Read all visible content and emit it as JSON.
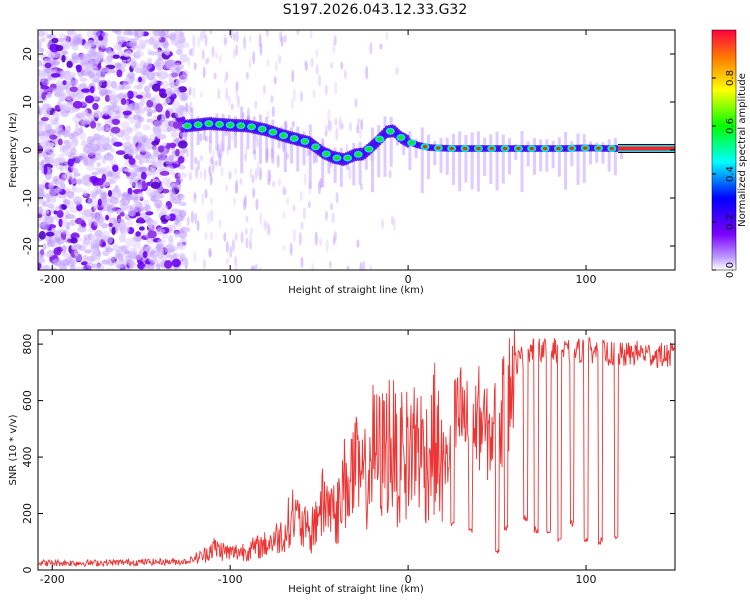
{
  "title": "S197.2026.043.12.33.G32",
  "colors": {
    "trace": "#ee3333",
    "axis": "#000000",
    "track": "#000000"
  },
  "chart_data": [
    {
      "type": "heatmap",
      "title": "S197.2026.043.12.33.G32",
      "xlabel": "Height of straight line (km)",
      "ylabel": "Frequency (Hz)",
      "xlim": [
        -208,
        150
      ],
      "ylim": [
        -25,
        25
      ],
      "xticks": [
        -200,
        -100,
        0,
        100
      ],
      "yticks": [
        -20,
        -10,
        0,
        10,
        20
      ],
      "colorbar": {
        "label": "Normalized spectral amplitude",
        "range": [
          0,
          1
        ],
        "ticks": [
          "0.0",
          "0.2",
          "0.4",
          "0.6",
          "0.8"
        ],
        "colors": [
          "#ffffff",
          "#a070ff",
          "#0000ff",
          "#00ffff",
          "#00ff00",
          "#ffff00",
          "#ff8000",
          "#ff0000"
        ]
      },
      "ridge_heights_km": [
        -125,
        -112,
        -100,
        -90,
        -80,
        -70,
        -62,
        -55,
        -48,
        -42,
        -36,
        -30,
        -25,
        -18,
        -12,
        -8,
        -4,
        0,
        4,
        8,
        12,
        18,
        25,
        32,
        40,
        48,
        56,
        64,
        72,
        80,
        88,
        96,
        104,
        112,
        120,
        130,
        140,
        150
      ],
      "ridge_freq_hz": [
        5.0,
        5.5,
        5.2,
        5.0,
        4.2,
        3.0,
        2.2,
        1.5,
        -0.5,
        -1.5,
        -2.0,
        -1.0,
        -0.8,
        1.5,
        3.8,
        4.0,
        2.6,
        1.8,
        1.2,
        0.8,
        0.5,
        0.4,
        0.3,
        0.3,
        0.3,
        0.3,
        0.3,
        0.3,
        0.3,
        0.3,
        0.3,
        0.4,
        0.4,
        0.3,
        0.3,
        0.3,
        0.3,
        0.3
      ],
      "noise_region_km": [
        -208,
        -125
      ]
    },
    {
      "type": "line",
      "xlabel": "Height of straight line (km)",
      "ylabel": "SNR (10 * v/v)",
      "xlim": [
        -208,
        150
      ],
      "ylim": [
        0,
        850
      ],
      "xticks": [
        -200,
        -100,
        0,
        100
      ],
      "yticks": [
        0,
        200,
        400,
        600,
        800
      ],
      "series": [
        {
          "name": "SNR",
          "x": [
            -208,
            -180,
            -150,
            -125,
            -115,
            -110,
            -100,
            -90,
            -80,
            -70,
            -65,
            -60,
            -55,
            -50,
            -45,
            -40,
            -35,
            -30,
            -25,
            -20,
            -15,
            -10,
            -5,
            0,
            5,
            10,
            15,
            20,
            25,
            30,
            35,
            40,
            45,
            50,
            55,
            60,
            65,
            70,
            80,
            90,
            100,
            110,
            120,
            130,
            140,
            150
          ],
          "y": [
            25,
            25,
            28,
            30,
            50,
            80,
            60,
            70,
            90,
            130,
            200,
            160,
            120,
            220,
            240,
            200,
            320,
            350,
            300,
            420,
            400,
            470,
            350,
            420,
            460,
            390,
            460,
            330,
            490,
            560,
            480,
            540,
            470,
            520,
            580,
            730,
            760,
            780,
            780,
            770,
            780,
            770,
            760,
            770,
            760,
            760
          ]
        }
      ],
      "dropouts": [
        {
          "x": 25,
          "y": 150
        },
        {
          "x": 35,
          "y": 130
        },
        {
          "x": 50,
          "y": 60
        },
        {
          "x": 55,
          "y": 140
        },
        {
          "x": 66,
          "y": 170
        },
        {
          "x": 72,
          "y": 130
        },
        {
          "x": 79,
          "y": 120
        },
        {
          "x": 85,
          "y": 100
        },
        {
          "x": 92,
          "y": 150
        },
        {
          "x": 100,
          "y": 100
        },
        {
          "x": 108,
          "y": 90
        },
        {
          "x": 117,
          "y": 100
        }
      ]
    }
  ]
}
